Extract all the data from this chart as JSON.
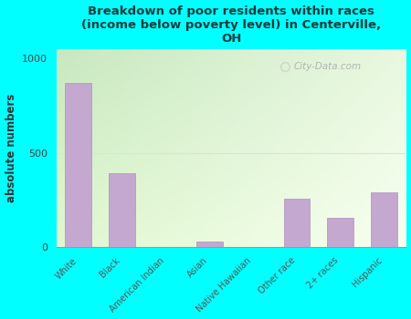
{
  "title": "Breakdown of poor residents within races\n(income below poverty level) in Centerville,\nOH",
  "title_color": "#1a3a3a",
  "categories": [
    "White",
    "Black",
    "American Indian",
    "Asian",
    "Native Hawaiian",
    "Other race",
    "2+ races",
    "Hispanic"
  ],
  "values": [
    870,
    390,
    0,
    30,
    0,
    255,
    155,
    290
  ],
  "bar_color": "#c4a8d0",
  "bar_edge_color": "#b090c0",
  "ylabel": "absolute numbers",
  "ylim": [
    0,
    1050
  ],
  "yticks": [
    0,
    500,
    1000
  ],
  "bg_color_topleft": "#c8e8c0",
  "bg_color_topright": "#e8f8e0",
  "bg_color_bottomleft": "#e0f0d0",
  "bg_color_bottomright": "#f8fff0",
  "outer_bg": "#00ffff",
  "watermark": "City-Data.com",
  "hline_y": 500,
  "hline_color": "#e0e0e0"
}
